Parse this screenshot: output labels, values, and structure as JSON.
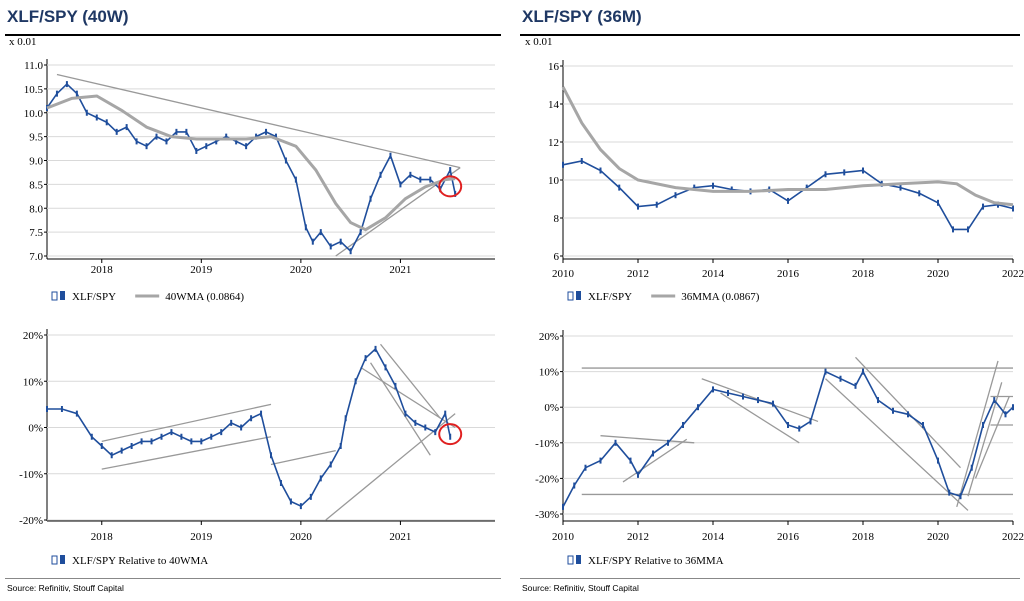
{
  "panels": {
    "left_title": "XLF/SPY (40W)",
    "right_title": "XLF/SPY (36M)",
    "left_source": "Source: Refinitiv, Stouff Capital",
    "right_source": "Source: Refinitiv, Stouff Capital"
  },
  "colors": {
    "price": "#1f4e9c",
    "ma": "#a6a6a6",
    "trend": "#999999",
    "circle": "#e02020",
    "title": "#1f3864"
  },
  "chart_data": [
    {
      "id": "tl",
      "type": "line",
      "title": "",
      "scale_label": "x 0.01",
      "x_ticks": [
        "2018",
        "2019",
        "2020",
        "2021"
      ],
      "x_tick_pos": [
        2018.0,
        2019.0,
        2020.0,
        2021.0
      ],
      "xlim": [
        2017.45,
        2021.95
      ],
      "ylim": [
        7.0,
        11.0
      ],
      "y_ticks": [
        "7.0",
        "7.5",
        "8.0",
        "8.5",
        "9.0",
        "9.5",
        "10.0",
        "10.5",
        "11.0"
      ],
      "y_tick_vals": [
        7.0,
        7.5,
        8.0,
        8.5,
        9.0,
        9.5,
        10.0,
        10.5,
        11.0
      ],
      "grid": true,
      "legend_position": "bottom-left",
      "series": [
        {
          "name": "XLF/SPY",
          "role": "price",
          "x": [
            2017.45,
            2017.55,
            2017.65,
            2017.75,
            2017.85,
            2017.95,
            2018.05,
            2018.15,
            2018.25,
            2018.35,
            2018.45,
            2018.55,
            2018.65,
            2018.75,
            2018.85,
            2018.95,
            2019.05,
            2019.15,
            2019.25,
            2019.35,
            2019.45,
            2019.55,
            2019.65,
            2019.75,
            2019.85,
            2019.95,
            2020.05,
            2020.12,
            2020.2,
            2020.3,
            2020.4,
            2020.5,
            2020.6,
            2020.7,
            2020.8,
            2020.9,
            2021.0,
            2021.1,
            2021.2,
            2021.3,
            2021.4,
            2021.5,
            2021.55
          ],
          "y": [
            10.1,
            10.4,
            10.6,
            10.4,
            10.0,
            9.9,
            9.8,
            9.6,
            9.7,
            9.4,
            9.3,
            9.5,
            9.4,
            9.6,
            9.6,
            9.2,
            9.3,
            9.4,
            9.5,
            9.4,
            9.3,
            9.5,
            9.6,
            9.5,
            9.0,
            8.6,
            7.6,
            7.3,
            7.5,
            7.2,
            7.3,
            7.1,
            7.5,
            8.2,
            8.7,
            9.1,
            8.5,
            8.7,
            8.6,
            8.6,
            8.4,
            8.8,
            8.3
          ]
        },
        {
          "name": "40WMA (0.0864)",
          "role": "ma",
          "x": [
            2017.45,
            2017.7,
            2017.95,
            2018.2,
            2018.45,
            2018.7,
            2018.95,
            2019.2,
            2019.45,
            2019.7,
            2019.95,
            2020.15,
            2020.35,
            2020.5,
            2020.65,
            2020.85,
            2021.05,
            2021.25,
            2021.45,
            2021.55
          ],
          "y": [
            10.1,
            10.3,
            10.35,
            10.05,
            9.7,
            9.5,
            9.45,
            9.45,
            9.45,
            9.5,
            9.3,
            8.8,
            8.1,
            7.7,
            7.55,
            7.8,
            8.2,
            8.45,
            8.6,
            8.62
          ]
        }
      ],
      "trendlines": [
        {
          "x": [
            2017.55,
            2021.6
          ],
          "y": [
            10.8,
            8.85
          ]
        },
        {
          "x": [
            2020.35,
            2021.6
          ],
          "y": [
            7.0,
            8.85
          ]
        }
      ],
      "marker": {
        "x": 2021.48,
        "y": 8.5
      }
    },
    {
      "id": "tr",
      "type": "line",
      "title": "",
      "scale_label": "x 0.01",
      "x_ticks": [
        "2010",
        "2012",
        "2014",
        "2016",
        "2018",
        "2020",
        "2022"
      ],
      "x_tick_pos": [
        2010,
        2012,
        2014,
        2016,
        2018,
        2020,
        2022
      ],
      "xlim": [
        2010,
        2022
      ],
      "ylim": [
        6,
        16
      ],
      "y_ticks": [
        "6",
        "8",
        "10",
        "12",
        "14",
        "16"
      ],
      "y_tick_vals": [
        6,
        8,
        10,
        12,
        14,
        16
      ],
      "grid": true,
      "legend_position": "bottom-left",
      "series": [
        {
          "name": "XLF/SPY",
          "role": "price",
          "x": [
            2010,
            2010.5,
            2011,
            2011.5,
            2012,
            2012.5,
            2013,
            2013.5,
            2014,
            2014.5,
            2015,
            2015.5,
            2016,
            2016.5,
            2017,
            2017.5,
            2018,
            2018.5,
            2019,
            2019.5,
            2020,
            2020.4,
            2020.8,
            2021.2,
            2021.6,
            2022
          ],
          "y": [
            10.8,
            11.0,
            10.5,
            9.6,
            8.6,
            8.7,
            9.2,
            9.6,
            9.7,
            9.5,
            9.4,
            9.5,
            8.9,
            9.6,
            10.3,
            10.4,
            10.5,
            9.8,
            9.6,
            9.3,
            8.8,
            7.4,
            7.4,
            8.6,
            8.7,
            8.5
          ]
        },
        {
          "name": "36MMA (0.0867)",
          "role": "ma",
          "x": [
            2010,
            2010.5,
            2011,
            2011.5,
            2012,
            2013,
            2014,
            2015,
            2016,
            2017,
            2018,
            2019,
            2020,
            2020.5,
            2021,
            2021.5,
            2022
          ],
          "y": [
            14.9,
            13.0,
            11.6,
            10.6,
            10.0,
            9.6,
            9.4,
            9.4,
            9.5,
            9.5,
            9.7,
            9.8,
            9.9,
            9.8,
            9.2,
            8.8,
            8.7
          ]
        }
      ],
      "trendlines": []
    },
    {
      "id": "bl",
      "type": "line",
      "title": "",
      "scale_label": "",
      "x_ticks": [
        "2018",
        "2019",
        "2020",
        "2021"
      ],
      "x_tick_pos": [
        2018.0,
        2019.0,
        2020.0,
        2021.0
      ],
      "xlim": [
        2017.45,
        2021.95
      ],
      "ylim": [
        -20,
        20
      ],
      "y_ticks": [
        "-20%",
        "-10%",
        "0%",
        "10%",
        "20%"
      ],
      "y_tick_vals": [
        -20,
        -10,
        0,
        10,
        20
      ],
      "grid": true,
      "legend_position": "bottom-left",
      "series": [
        {
          "name": "XLF/SPY Relative to 40WMA",
          "role": "price",
          "x": [
            2017.45,
            2017.6,
            2017.75,
            2017.9,
            2018.0,
            2018.1,
            2018.2,
            2018.3,
            2018.4,
            2018.5,
            2018.6,
            2018.7,
            2018.8,
            2018.9,
            2019.0,
            2019.1,
            2019.2,
            2019.3,
            2019.4,
            2019.5,
            2019.6,
            2019.7,
            2019.8,
            2019.9,
            2020.0,
            2020.1,
            2020.2,
            2020.3,
            2020.4,
            2020.45,
            2020.55,
            2020.65,
            2020.75,
            2020.85,
            2020.95,
            2021.05,
            2021.15,
            2021.25,
            2021.35,
            2021.45,
            2021.5
          ],
          "y": [
            4,
            4,
            3,
            -2,
            -4,
            -6,
            -5,
            -4,
            -3,
            -3,
            -2,
            -1,
            -2,
            -3,
            -3,
            -2,
            -1,
            1,
            0,
            2,
            3,
            -6,
            -12,
            -16,
            -17,
            -15,
            -11,
            -8,
            -4,
            2,
            10,
            15,
            17,
            13,
            9,
            3,
            1,
            0,
            -1,
            3,
            -2
          ]
        }
      ],
      "trendlines": [
        {
          "x": [
            2018.0,
            2019.7
          ],
          "y": [
            -3,
            5
          ]
        },
        {
          "x": [
            2018.0,
            2019.7
          ],
          "y": [
            -9,
            -2
          ]
        },
        {
          "x": [
            2019.7,
            2020.35
          ],
          "y": [
            -8,
            -5
          ]
        },
        {
          "x": [
            2020.25,
            2021.55
          ],
          "y": [
            -20,
            3
          ]
        },
        {
          "x": [
            2020.6,
            2021.55
          ],
          "y": [
            13,
            0
          ]
        },
        {
          "x": [
            2020.8,
            2021.4
          ],
          "y": [
            18,
            2
          ]
        },
        {
          "x": [
            2020.7,
            2021.3
          ],
          "y": [
            14,
            -6
          ]
        }
      ],
      "marker": {
        "x": 2021.48,
        "y": -1
      }
    },
    {
      "id": "br",
      "type": "line",
      "title": "",
      "scale_label": "",
      "x_ticks": [
        "2010",
        "2012",
        "2014",
        "2016",
        "2018",
        "2020",
        "2022"
      ],
      "x_tick_pos": [
        2010,
        2012,
        2014,
        2016,
        2018,
        2020,
        2022
      ],
      "xlim": [
        2010,
        2022
      ],
      "ylim": [
        -30,
        20
      ],
      "y_ticks": [
        "-30%",
        "-20%",
        "-10%",
        "0%",
        "10%",
        "20%"
      ],
      "y_tick_vals": [
        -30,
        -20,
        -10,
        0,
        10,
        20
      ],
      "grid": true,
      "legend_position": "bottom-left",
      "series": [
        {
          "name": "XLF/SPY Relative to 36MMA",
          "role": "price",
          "x": [
            2010,
            2010.3,
            2010.6,
            2011,
            2011.4,
            2011.8,
            2012,
            2012.4,
            2012.8,
            2013.2,
            2013.6,
            2014,
            2014.4,
            2014.8,
            2015.2,
            2015.6,
            2016,
            2016.3,
            2016.6,
            2017,
            2017.4,
            2017.8,
            2018,
            2018.4,
            2018.8,
            2019.2,
            2019.6,
            2020,
            2020.3,
            2020.6,
            2020.9,
            2021.2,
            2021.5,
            2021.8,
            2022
          ],
          "y": [
            -28,
            -22,
            -17,
            -15,
            -10,
            -15,
            -19,
            -13,
            -10,
            -5,
            0,
            5,
            4,
            3,
            2,
            1,
            -5,
            -6,
            -4,
            10,
            8,
            6,
            10,
            2,
            -1,
            -2,
            -5,
            -15,
            -24,
            -25,
            -17,
            -5,
            2,
            -2,
            0
          ]
        }
      ],
      "trendlines": [
        {
          "x": [
            2010.5,
            2022
          ],
          "y": [
            11,
            11
          ]
        },
        {
          "x": [
            2010.5,
            2022
          ],
          "y": [
            -24.5,
            -24.5
          ]
        },
        {
          "x": [
            2011,
            2013.5
          ],
          "y": [
            -8,
            -10
          ]
        },
        {
          "x": [
            2011.6,
            2013.3
          ],
          "y": [
            -21,
            -9
          ]
        },
        {
          "x": [
            2013.7,
            2016.8
          ],
          "y": [
            8,
            -4
          ]
        },
        {
          "x": [
            2014.2,
            2016.3
          ],
          "y": [
            4,
            -10
          ]
        },
        {
          "x": [
            2017.8,
            2020.6
          ],
          "y": [
            14,
            -17
          ]
        },
        {
          "x": [
            2017.0,
            2020.8
          ],
          "y": [
            8,
            -29
          ]
        },
        {
          "x": [
            2020.5,
            2021.6
          ],
          "y": [
            -28,
            13
          ]
        },
        {
          "x": [
            2020.8,
            2021.7
          ],
          "y": [
            -25,
            7
          ]
        },
        {
          "x": [
            2021.0,
            2021.9
          ],
          "y": [
            -20,
            3
          ]
        },
        {
          "x": [
            2021.4,
            2022
          ],
          "y": [
            3,
            3
          ]
        },
        {
          "x": [
            2021.4,
            2022
          ],
          "y": [
            -5,
            -5
          ]
        }
      ]
    }
  ]
}
